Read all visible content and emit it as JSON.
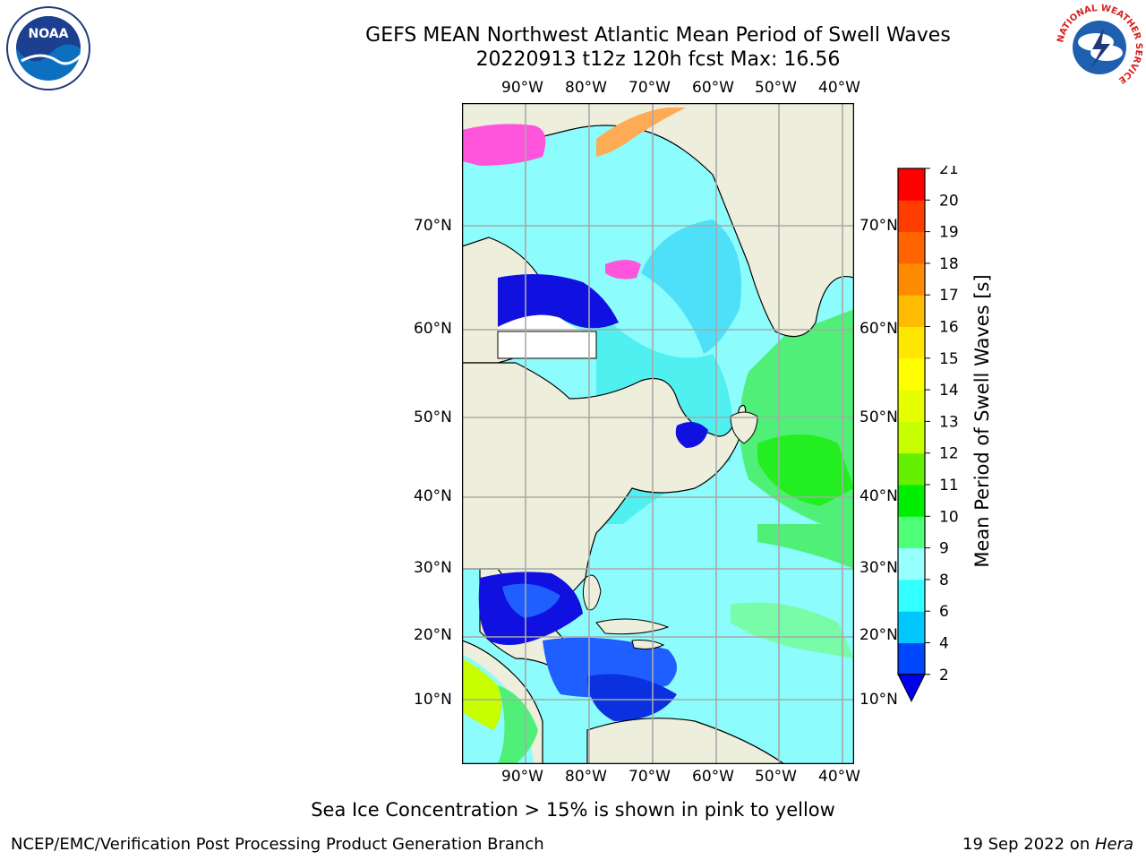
{
  "title_line1": "GEFS MEAN Northwest Atlantic Mean Period of Swell Waves",
  "title_line2": "20220913 t12z 120h fcst   Max: 16.56",
  "longitude_labels": [
    "90°W",
    "80°W",
    "70°W",
    "60°W",
    "50°W",
    "40°W"
  ],
  "latitude_labels": [
    "70°N",
    "60°N",
    "50°N",
    "40°N",
    "30°N",
    "20°N",
    "10°N"
  ],
  "colorbar": {
    "label": "Mean Period of Swell Waves [s]",
    "ticks": [
      "2",
      "4",
      "6",
      "8",
      "9",
      "10",
      "11",
      "12",
      "13",
      "14",
      "15",
      "16",
      "17",
      "18",
      "19",
      "20",
      "21"
    ],
    "colors": [
      "#0046ff",
      "#00c8ff",
      "#32ffff",
      "#96ffff",
      "#50ff78",
      "#00ee00",
      "#64f000",
      "#c8ff00",
      "#e6ff00",
      "#ffff00",
      "#ffe600",
      "#ffbb00",
      "#ff8c00",
      "#ff6400",
      "#ff3c00",
      "#ff0000"
    ],
    "extend_below_color": "#0000ee"
  },
  "ice_note": "Sea Ice Concentration > 15% is shown in pink to yellow",
  "footer_left": "NCEP/EMC/Verification Post Processing Product Generation Branch",
  "footer_date": "19 Sep 2022 on ",
  "footer_host": "Hera",
  "logos": {
    "noaa_text": "NOAA",
    "nws_text": "NATIONAL WEATHER SERVICE"
  },
  "colors": {
    "land": "#eeeedc",
    "ocean_base": "#8cfcfc",
    "grid": "#a8a8a8"
  }
}
